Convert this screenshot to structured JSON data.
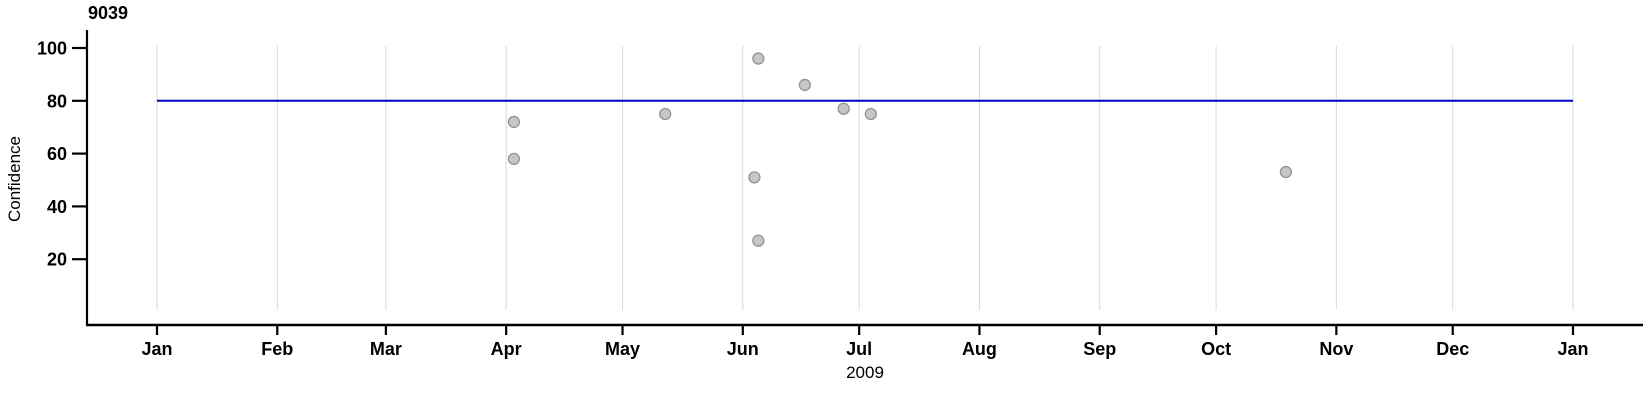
{
  "chart_data": {
    "type": "scatter",
    "title": "9039",
    "xlabel": "2009",
    "ylabel": "Confidence",
    "legend": "none",
    "x_axis": {
      "unit": "day_of_year_2009",
      "range_days": [
        0,
        365
      ],
      "ticks": [
        {
          "label": "Jan",
          "day": 0
        },
        {
          "label": "Feb",
          "day": 31
        },
        {
          "label": "Mar",
          "day": 59
        },
        {
          "label": "Apr",
          "day": 90
        },
        {
          "label": "May",
          "day": 120
        },
        {
          "label": "Jun",
          "day": 151
        },
        {
          "label": "Jul",
          "day": 181
        },
        {
          "label": "Aug",
          "day": 212
        },
        {
          "label": "Sep",
          "day": 243
        },
        {
          "label": "Oct",
          "day": 273
        },
        {
          "label": "Nov",
          "day": 304
        },
        {
          "label": "Dec",
          "day": 334
        },
        {
          "label": "Jan",
          "day": 365
        }
      ]
    },
    "y_axis": {
      "ticks": [
        100,
        80,
        60,
        40,
        20
      ],
      "range": [
        0,
        105
      ]
    },
    "grid": {
      "orientation": "vertical",
      "color": "#d9d9d9"
    },
    "reference_line": {
      "value": 80,
      "span_days": [
        0,
        365
      ],
      "color": "#0000c4"
    },
    "point_style": {
      "fill": "#c6c6c6",
      "stroke": "#949494",
      "radius": 5.5
    },
    "axis_color": "#000000",
    "points": [
      {
        "day": 92,
        "confidence": 72
      },
      {
        "day": 92,
        "confidence": 58
      },
      {
        "day": 131,
        "confidence": 75
      },
      {
        "day": 154,
        "confidence": 51
      },
      {
        "day": 155,
        "confidence": 96
      },
      {
        "day": 155,
        "confidence": 27
      },
      {
        "day": 167,
        "confidence": 86
      },
      {
        "day": 177,
        "confidence": 77
      },
      {
        "day": 184,
        "confidence": 75
      },
      {
        "day": 291,
        "confidence": 53
      }
    ]
  }
}
